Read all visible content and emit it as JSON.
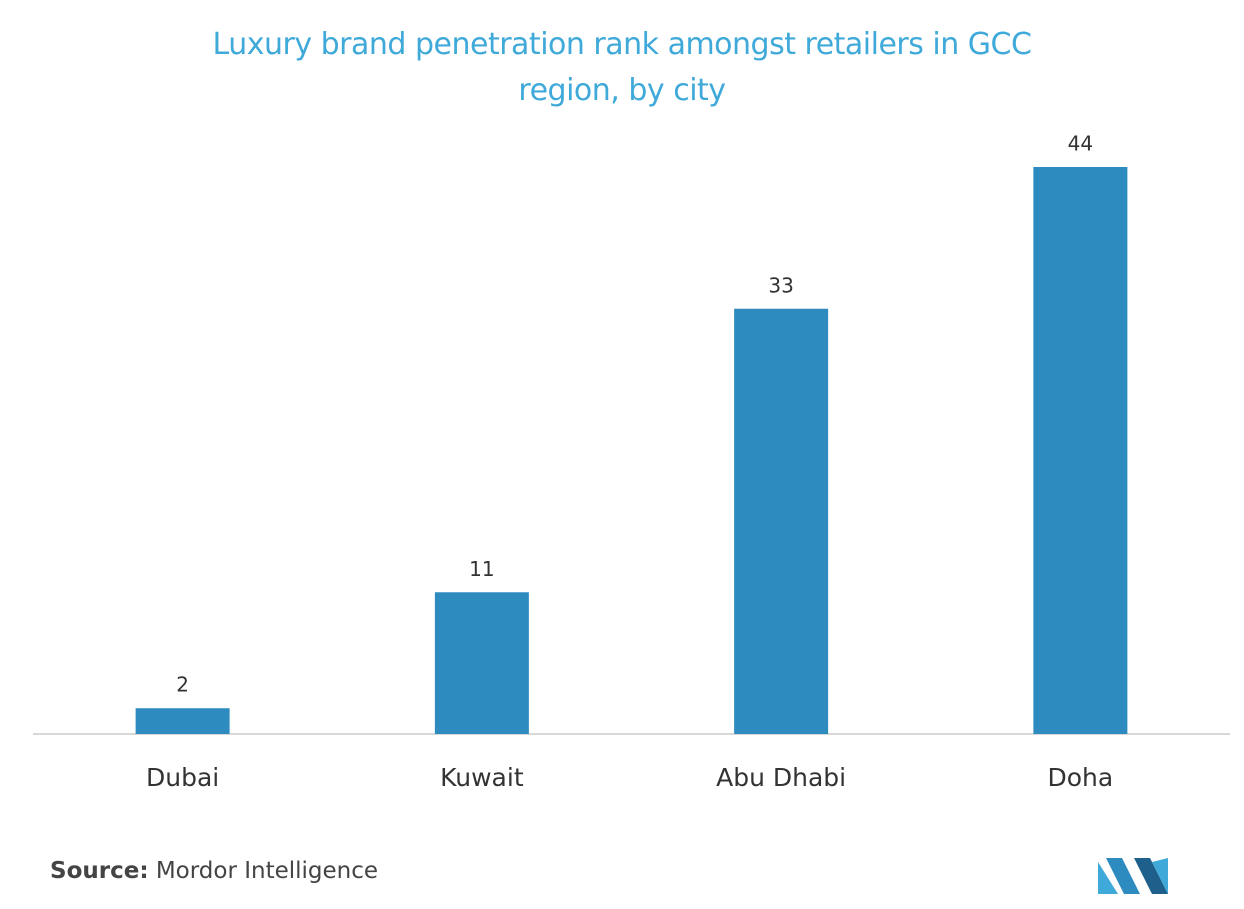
{
  "chart_data": {
    "type": "bar",
    "title": "Luxury brand penetration rank amongst retailers in GCC region, by city",
    "categories": [
      "Dubai",
      "Kuwait",
      "Abu Dhabi",
      "Doha"
    ],
    "values": [
      2,
      11,
      33,
      44
    ],
    "color": "#2e8bc0",
    "source_label": "Source:",
    "source": "Mordor Intelligence"
  }
}
